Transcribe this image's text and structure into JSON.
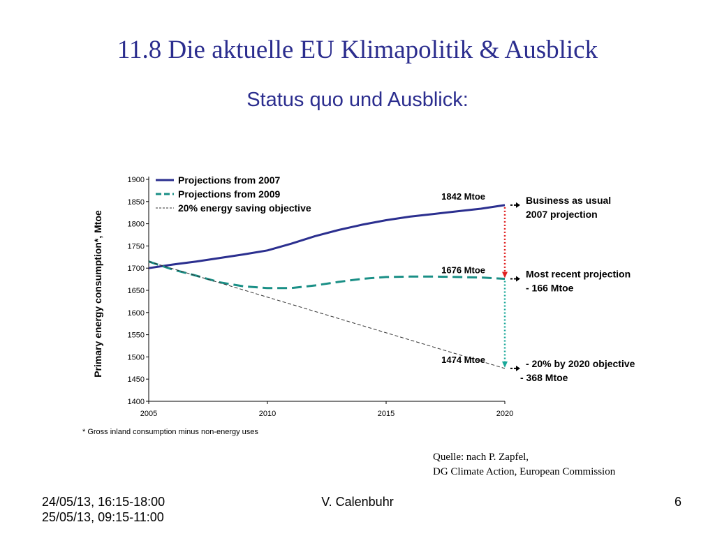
{
  "slide": {
    "title": "11.8 Die aktuelle EU Klimapolitik & Ausblick",
    "subtitle": "Status quo und Ausblick:"
  },
  "source": {
    "line1": "Quelle: nach P. Zapfel,",
    "line2": "DG Climate Action, European Commission"
  },
  "footer": {
    "date_line1": "24/05/13, 16:15-18:00",
    "date_line2": "25/05/13, 09:15-11:00",
    "author": "V. Calenbuhr",
    "page": "6"
  },
  "chart_data": {
    "type": "line",
    "ylabel": "Primary energy consumption*, Mtoe",
    "footnote": "*   Gross inland consumption minus non-energy uses",
    "xlim": [
      2005,
      2020
    ],
    "ylim": [
      1400,
      1900
    ],
    "x_ticks": [
      2005,
      2010,
      2015,
      2020
    ],
    "y_ticks": [
      1400,
      1450,
      1500,
      1550,
      1600,
      1650,
      1700,
      1750,
      1800,
      1850,
      1900
    ],
    "grid": false,
    "legend_position": "top-left",
    "series": [
      {
        "name": "Projections from 2007",
        "style": "solid",
        "color": "#2b2f8f",
        "x": [
          2005,
          2006,
          2007,
          2008,
          2009,
          2010,
          2011,
          2012,
          2013,
          2014,
          2015,
          2016,
          2017,
          2018,
          2019,
          2020
        ],
        "y": [
          1700,
          1708,
          1715,
          1723,
          1731,
          1740,
          1755,
          1772,
          1786,
          1798,
          1808,
          1816,
          1822,
          1828,
          1834,
          1842
        ]
      },
      {
        "name": "Projections from 2009",
        "style": "dashed",
        "color": "#1a8f86",
        "x": [
          2005,
          2006,
          2007,
          2008,
          2009,
          2010,
          2011,
          2012,
          2013,
          2014,
          2015,
          2016,
          2017,
          2018,
          2019,
          2020
        ],
        "y": [
          1715,
          1697,
          1683,
          1668,
          1659,
          1655,
          1655,
          1661,
          1669,
          1676,
          1680,
          1681,
          1681,
          1680,
          1679,
          1676
        ]
      },
      {
        "name": "20% energy saving objective",
        "style": "thin-dashed",
        "color": "#333333",
        "x": [
          2005,
          2020
        ],
        "y": [
          1715,
          1474
        ]
      }
    ],
    "point_labels": [
      {
        "text": "1842 Mtoe",
        "x": 2020,
        "y": 1842
      },
      {
        "text": "1676 Mtoe",
        "x": 2020,
        "y": 1676
      },
      {
        "text": "1474 Mtoe",
        "x": 2020,
        "y": 1474
      }
    ],
    "gap_arrows": [
      {
        "from": 1842,
        "to": 1676,
        "color": "#e02020"
      },
      {
        "from": 1676,
        "to": 1474,
        "color": "#1aa89a"
      }
    ],
    "annotations": [
      {
        "y": 1842,
        "lines": [
          "Business as usual",
          "2007 projection"
        ]
      },
      {
        "y": 1676,
        "lines": [
          "Most recent projection",
          "- 166 Mtoe"
        ]
      },
      {
        "y": 1474,
        "lines": [
          "- 20% by 2020 objective",
          "- 368 Mtoe"
        ]
      }
    ]
  }
}
